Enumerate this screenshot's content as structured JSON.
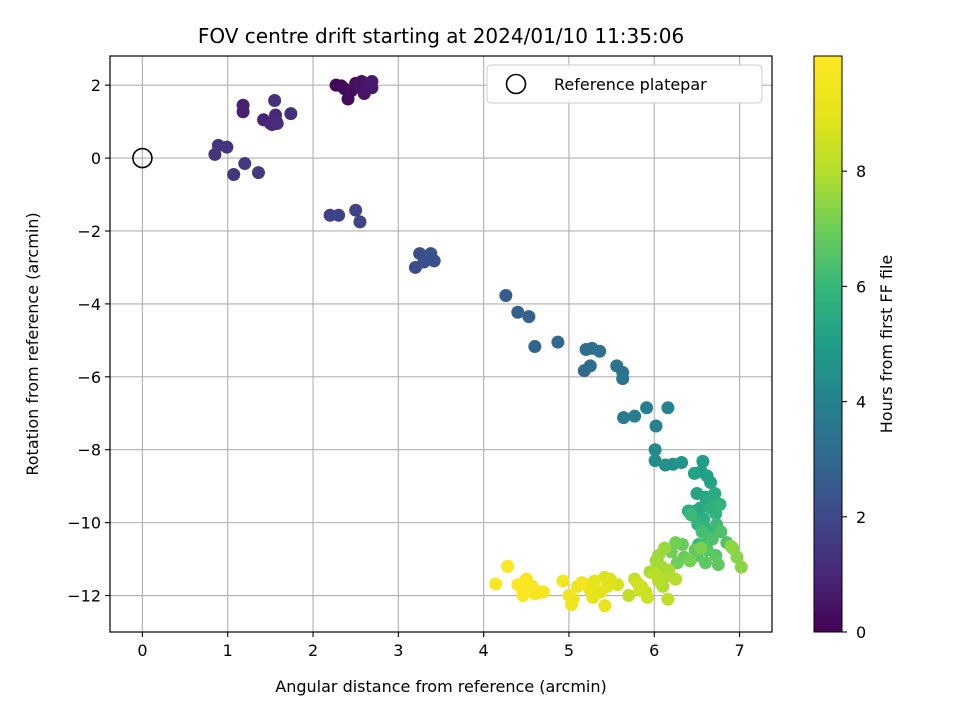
{
  "chart_data": {
    "type": "scatter",
    "title": "FOV centre drift starting at 2024/01/10 11:35:06",
    "xlabel": "Angular distance from reference (arcmin)",
    "ylabel": "Rotation from reference (arcmin)",
    "colorbar_label": "Hours from first FF file",
    "xlim": [
      -0.38,
      7.38
    ],
    "ylim": [
      -13.0,
      2.8
    ],
    "xticks": [
      0,
      1,
      2,
      3,
      4,
      5,
      6,
      7
    ],
    "yticks": [
      -12,
      -10,
      -8,
      -6,
      -4,
      -2,
      0,
      2
    ],
    "colorbar_range": [
      0,
      10
    ],
    "colorbar_ticks": [
      0,
      2,
      4,
      6,
      8
    ],
    "grid": true,
    "legend": {
      "position": "top-right",
      "entries": [
        "Reference platepar"
      ]
    },
    "reference_point": {
      "x": 0,
      "y": 0
    },
    "colormap": "viridis",
    "points": [
      [
        2.27,
        2.0,
        0.1
      ],
      [
        2.33,
        1.98,
        0.15
      ],
      [
        2.37,
        1.9,
        0.2
      ],
      [
        2.41,
        1.62,
        0.25
      ],
      [
        2.45,
        1.85,
        0.3
      ],
      [
        2.5,
        2.05,
        0.35
      ],
      [
        2.53,
        1.95,
        0.4
      ],
      [
        2.57,
        2.1,
        0.45
      ],
      [
        2.6,
        1.77,
        0.5
      ],
      [
        2.64,
        2.0,
        0.55
      ],
      [
        2.69,
        1.93,
        0.6
      ],
      [
        2.69,
        2.1,
        0.65
      ],
      [
        1.18,
        1.27,
        0.8
      ],
      [
        1.18,
        1.45,
        0.85
      ],
      [
        1.42,
        1.05,
        0.9
      ],
      [
        1.5,
        0.95,
        0.95
      ],
      [
        1.52,
        0.92,
        1.0
      ],
      [
        1.56,
        1.18,
        1.05
      ],
      [
        1.57,
        1.0,
        1.1
      ],
      [
        1.58,
        0.95,
        1.15
      ],
      [
        1.55,
        1.58,
        1.2
      ],
      [
        1.74,
        1.22,
        1.25
      ],
      [
        0.85,
        0.1,
        1.3
      ],
      [
        0.89,
        0.35,
        1.35
      ],
      [
        0.99,
        0.3,
        1.4
      ],
      [
        1.07,
        -0.45,
        1.45
      ],
      [
        1.2,
        -0.15,
        1.5
      ],
      [
        1.36,
        -0.4,
        1.55
      ],
      [
        2.2,
        -1.57,
        1.75
      ],
      [
        2.3,
        -1.57,
        1.8
      ],
      [
        2.5,
        -1.43,
        1.85
      ],
      [
        2.55,
        -1.75,
        1.9
      ],
      [
        3.2,
        -3.0,
        2.1
      ],
      [
        3.25,
        -2.62,
        2.15
      ],
      [
        3.3,
        -2.85,
        2.2
      ],
      [
        3.38,
        -2.62,
        2.25
      ],
      [
        3.42,
        -2.82,
        2.3
      ],
      [
        4.26,
        -3.77,
        2.6
      ],
      [
        4.4,
        -4.23,
        2.7
      ],
      [
        4.53,
        -4.35,
        2.8
      ],
      [
        4.6,
        -5.17,
        2.9
      ],
      [
        4.87,
        -5.05,
        3.0
      ],
      [
        5.18,
        -5.83,
        3.1
      ],
      [
        5.2,
        -5.25,
        3.15
      ],
      [
        5.25,
        -5.7,
        3.2
      ],
      [
        5.27,
        -5.22,
        3.25
      ],
      [
        5.36,
        -5.3,
        3.3
      ],
      [
        5.56,
        -5.7,
        3.4
      ],
      [
        5.63,
        -5.88,
        3.45
      ],
      [
        5.63,
        -6.05,
        3.5
      ],
      [
        5.64,
        -7.12,
        3.7
      ],
      [
        5.77,
        -7.08,
        3.8
      ],
      [
        5.91,
        -6.85,
        3.9
      ],
      [
        6.02,
        -7.35,
        4.0
      ],
      [
        6.16,
        -6.85,
        4.1
      ],
      [
        6.01,
        -8.0,
        4.3
      ],
      [
        6.01,
        -8.3,
        4.4
      ],
      [
        6.13,
        -8.42,
        4.5
      ],
      [
        6.22,
        -8.4,
        4.55
      ],
      [
        6.32,
        -8.35,
        4.6
      ],
      [
        6.57,
        -8.32,
        5.0
      ],
      [
        6.55,
        -8.6,
        5.05
      ],
      [
        6.62,
        -8.72,
        5.1
      ],
      [
        6.47,
        -8.65,
        5.15
      ],
      [
        6.66,
        -8.9,
        5.2
      ],
      [
        6.5,
        -9.2,
        5.25
      ],
      [
        6.6,
        -9.3,
        5.3
      ],
      [
        6.54,
        -9.6,
        5.35
      ],
      [
        6.48,
        -9.68,
        5.4
      ],
      [
        6.61,
        -9.45,
        5.45
      ],
      [
        6.69,
        -9.35,
        5.5
      ],
      [
        6.71,
        -9.2,
        5.55
      ],
      [
        6.4,
        -9.68,
        5.6
      ],
      [
        6.45,
        -9.8,
        5.65
      ],
      [
        6.58,
        -9.9,
        5.7
      ],
      [
        6.66,
        -9.6,
        5.75
      ],
      [
        6.72,
        -9.75,
        5.8
      ],
      [
        6.77,
        -9.5,
        5.85
      ],
      [
        6.51,
        -10.05,
        5.9
      ],
      [
        6.6,
        -10.15,
        5.95
      ],
      [
        6.67,
        -10.3,
        6.0
      ],
      [
        6.52,
        -10.6,
        6.05
      ],
      [
        6.43,
        -9.78,
        6.1
      ],
      [
        6.73,
        -10.05,
        6.15
      ],
      [
        6.62,
        -10.55,
        6.2
      ],
      [
        6.56,
        -10.25,
        6.25
      ],
      [
        6.68,
        -10.45,
        6.4
      ],
      [
        6.78,
        -10.25,
        6.45
      ],
      [
        6.85,
        -10.55,
        6.5
      ],
      [
        6.62,
        -10.75,
        6.55
      ],
      [
        6.5,
        -10.9,
        6.6
      ],
      [
        6.72,
        -10.9,
        6.65
      ],
      [
        6.6,
        -11.1,
        6.7
      ],
      [
        6.75,
        -11.15,
        6.75
      ],
      [
        6.48,
        -10.75,
        6.8
      ],
      [
        6.33,
        -10.6,
        6.85
      ],
      [
        6.35,
        -10.95,
        6.9
      ],
      [
        6.27,
        -11.1,
        6.95
      ],
      [
        6.2,
        -10.8,
        7.0
      ],
      [
        6.25,
        -10.55,
        7.05
      ],
      [
        6.42,
        -11.05,
        7.1
      ],
      [
        6.55,
        -10.7,
        7.15
      ],
      [
        6.92,
        -10.7,
        7.3
      ],
      [
        6.97,
        -10.95,
        7.35
      ],
      [
        7.02,
        -11.22,
        7.4
      ],
      [
        6.9,
        -10.65,
        7.45
      ],
      [
        6.12,
        -10.7,
        7.6
      ],
      [
        6.05,
        -10.9,
        7.65
      ],
      [
        6.02,
        -11.05,
        7.7
      ],
      [
        6.08,
        -11.2,
        7.75
      ],
      [
        6.17,
        -11.3,
        7.8
      ],
      [
        5.95,
        -11.35,
        7.85
      ],
      [
        6.15,
        -11.45,
        7.9
      ],
      [
        6.1,
        -11.75,
        7.95
      ],
      [
        6.25,
        -11.55,
        8.0
      ],
      [
        6.05,
        -11.6,
        8.05
      ],
      [
        6.0,
        -11.4,
        8.1
      ],
      [
        6.16,
        -12.1,
        8.15
      ],
      [
        5.7,
        -12.0,
        8.2
      ],
      [
        5.77,
        -11.55,
        8.3
      ],
      [
        5.85,
        -11.75,
        8.35
      ],
      [
        5.9,
        -11.9,
        8.4
      ],
      [
        5.92,
        -12.05,
        8.45
      ],
      [
        5.83,
        -11.85,
        8.5
      ],
      [
        5.8,
        -11.65,
        8.55
      ],
      [
        5.57,
        -11.7,
        8.7
      ],
      [
        5.48,
        -11.55,
        8.75
      ],
      [
        5.42,
        -11.5,
        8.8
      ],
      [
        5.45,
        -11.75,
        8.85
      ],
      [
        5.37,
        -11.9,
        8.9
      ],
      [
        5.3,
        -11.6,
        8.95
      ],
      [
        5.25,
        -11.85,
        9.0
      ],
      [
        5.28,
        -12.05,
        9.05
      ],
      [
        5.2,
        -11.7,
        9.1
      ],
      [
        5.42,
        -12.28,
        9.15
      ],
      [
        5.1,
        -11.75,
        9.3
      ],
      [
        5.05,
        -12.1,
        9.35
      ],
      [
        5.0,
        -12.0,
        9.4
      ],
      [
        5.03,
        -12.25,
        9.45
      ],
      [
        4.93,
        -11.6,
        9.5
      ],
      [
        5.15,
        -11.65,
        9.55
      ],
      [
        4.64,
        -11.92,
        9.6
      ],
      [
        4.7,
        -11.9,
        9.65
      ],
      [
        4.6,
        -11.95,
        9.7
      ],
      [
        4.57,
        -11.75,
        9.75
      ],
      [
        4.53,
        -11.75,
        9.8
      ],
      [
        4.5,
        -11.55,
        9.82
      ],
      [
        4.46,
        -11.85,
        9.85
      ],
      [
        4.46,
        -12.0,
        9.88
      ],
      [
        4.4,
        -11.7,
        9.9
      ],
      [
        4.28,
        -11.2,
        9.93
      ],
      [
        4.14,
        -11.68,
        9.95
      ]
    ]
  }
}
